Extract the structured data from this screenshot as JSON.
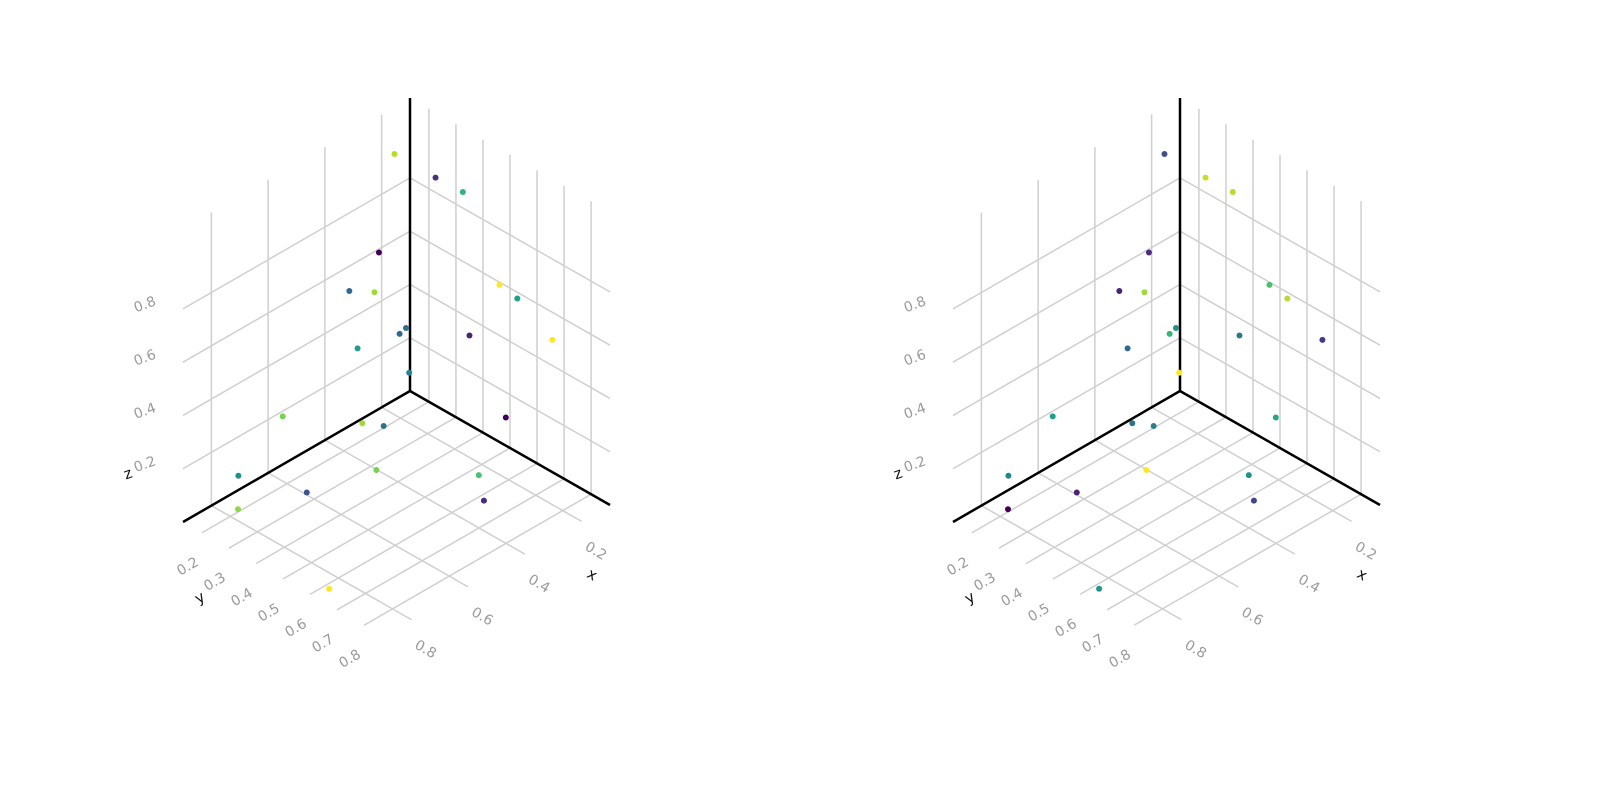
{
  "chart_data": [
    {
      "type": "scatter3d",
      "x_label": "x",
      "y_label": "y",
      "z_label": "z",
      "xlim": [
        0.1,
        0.9
      ],
      "ylim": [
        0.13,
        0.87
      ],
      "zlim": [
        0,
        1.1
      ],
      "xticks": [
        0.2,
        0.4,
        0.6,
        0.8
      ],
      "yticks": [
        0.2,
        0.3,
        0.4,
        0.5,
        0.6,
        0.7,
        0.8
      ],
      "zticks": [
        0.2,
        0.4,
        0.6,
        0.8
      ],
      "x": [
        0.25,
        0.21,
        0.19,
        0.4,
        0.39,
        0.53,
        0.28,
        0.16,
        0.2,
        0.27,
        0.3,
        0.16,
        0.38,
        0.16,
        0.21,
        0.72,
        0.43,
        0.45,
        0.59,
        0.41,
        0.8,
        0.74,
        0.43,
        0.83,
        0.89
      ],
      "y": [
        0.23,
        0.34,
        0.42,
        0.33,
        0.21,
        0.45,
        0.65,
        0.59,
        0.22,
        0.27,
        0.56,
        0.72,
        0.23,
        0.19,
        0.6,
        0.31,
        0.3,
        0.4,
        0.52,
        0.71,
        0.23,
        0.42,
        0.75,
        0.26,
        0.66
      ],
      "z": [
        1.04,
        0.99,
        0.97,
        0.82,
        0.6,
        0.82,
        0.81,
        0.65,
        0.35,
        0.4,
        0.58,
        0.57,
        0.39,
        0.14,
        0.24,
        0.39,
        0.18,
        0.24,
        0.23,
        0.21,
        0.17,
        0.18,
        0.15,
        0.08,
        0.05
      ],
      "colors": [
        "#b5de2b",
        "#46337e",
        "#2fb47c",
        "#440154",
        "#31688e",
        "#a0da39",
        "#fde725",
        "#1fa187",
        "#2c728e",
        "#31688e",
        "#482475",
        "#fde725",
        "#1f9e89",
        "#26828e",
        "#440154",
        "#7ad151",
        "#a0da39",
        "#2c728e",
        "#7ad151",
        "#4ac16d",
        "#21918c",
        "#3b528b",
        "#472d7b",
        "#8fd744",
        "#fde725"
      ]
    },
    {
      "type": "scatter3d",
      "x_label": "x",
      "y_label": "y",
      "z_label": "z",
      "xlim": [
        0.1,
        0.9
      ],
      "ylim": [
        0.13,
        0.87
      ],
      "zlim": [
        0,
        1.1
      ],
      "xticks": [
        0.2,
        0.4,
        0.6,
        0.8
      ],
      "yticks": [
        0.2,
        0.3,
        0.4,
        0.5,
        0.6,
        0.7,
        0.8
      ],
      "zticks": [
        0.2,
        0.4,
        0.6,
        0.8
      ],
      "x": [
        0.25,
        0.21,
        0.19,
        0.4,
        0.39,
        0.53,
        0.28,
        0.16,
        0.2,
        0.27,
        0.3,
        0.16,
        0.38,
        0.16,
        0.21,
        0.72,
        0.43,
        0.45,
        0.59,
        0.41,
        0.8,
        0.74,
        0.43,
        0.83,
        0.89
      ],
      "y": [
        0.23,
        0.34,
        0.42,
        0.33,
        0.21,
        0.45,
        0.65,
        0.59,
        0.22,
        0.27,
        0.56,
        0.72,
        0.23,
        0.19,
        0.6,
        0.31,
        0.3,
        0.4,
        0.52,
        0.71,
        0.23,
        0.42,
        0.75,
        0.26,
        0.66
      ],
      "z": [
        1.04,
        0.99,
        0.97,
        0.82,
        0.6,
        0.82,
        0.81,
        0.65,
        0.35,
        0.4,
        0.58,
        0.57,
        0.39,
        0.14,
        0.24,
        0.39,
        0.18,
        0.24,
        0.23,
        0.21,
        0.17,
        0.18,
        0.15,
        0.08,
        0.05
      ],
      "colors": [
        "#3b528b",
        "#c8e020",
        "#b5de2b",
        "#472d7b",
        "#482475",
        "#a0da39",
        "#4ac16d",
        "#b5de2b",
        "#21918c",
        "#35b779",
        "#2a788e",
        "#443983",
        "#31688e",
        "#fde725",
        "#22a884",
        "#1fa187",
        "#2c728e",
        "#26828e",
        "#fde725",
        "#21918c",
        "#25848e",
        "#482475",
        "#414487",
        "#440154",
        "#1f988b"
      ]
    }
  ]
}
